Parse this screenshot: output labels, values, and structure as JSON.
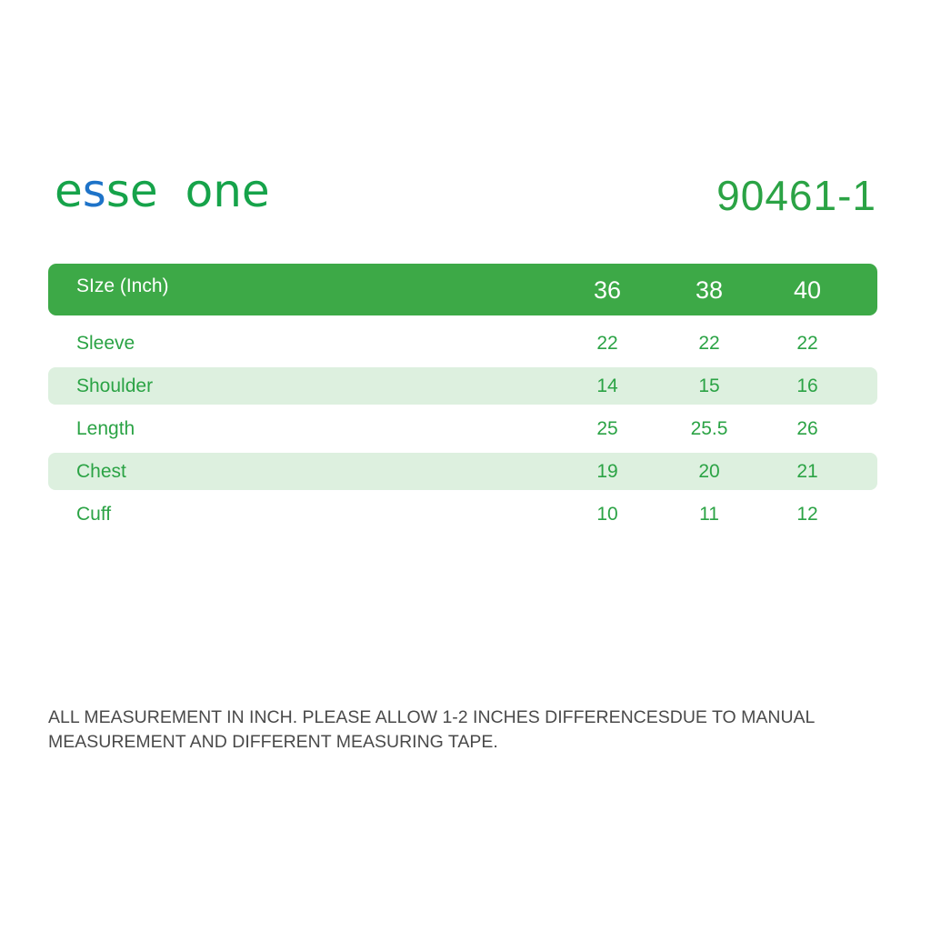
{
  "brand": {
    "logo_part1": "e",
    "logo_part2": "s",
    "logo_part3": "se",
    "logo_part4": "one",
    "logo_colors": {
      "green": "#16a34a",
      "blue": "#1e73c8"
    }
  },
  "style_code": "90461-1",
  "table": {
    "header_label": "SIze (Inch)",
    "sizes": [
      "36",
      "38",
      "40"
    ],
    "rows": [
      {
        "label": "Sleeve",
        "values": [
          "22",
          "22",
          "22"
        ]
      },
      {
        "label": "Shoulder",
        "values": [
          "14",
          "15",
          "16"
        ]
      },
      {
        "label": "Length",
        "values": [
          "25",
          "25.5",
          "26"
        ]
      },
      {
        "label": "Chest",
        "values": [
          "19",
          "20",
          "21"
        ]
      },
      {
        "label": "Cuff",
        "values": [
          "10",
          "11",
          "12"
        ]
      }
    ],
    "colors": {
      "header_bg": "#3da947",
      "row_shade": "#ddf0df",
      "text": "#2ba345"
    }
  },
  "note": {
    "line1": "ALL MEASUREMENT IN INCH. PLEASE ALLOW 1-2 INCHES DIFFERENCESDUE TO MANUAL",
    "line2": "MEASUREMENT AND DIFFERENT MEASURING TAPE."
  }
}
